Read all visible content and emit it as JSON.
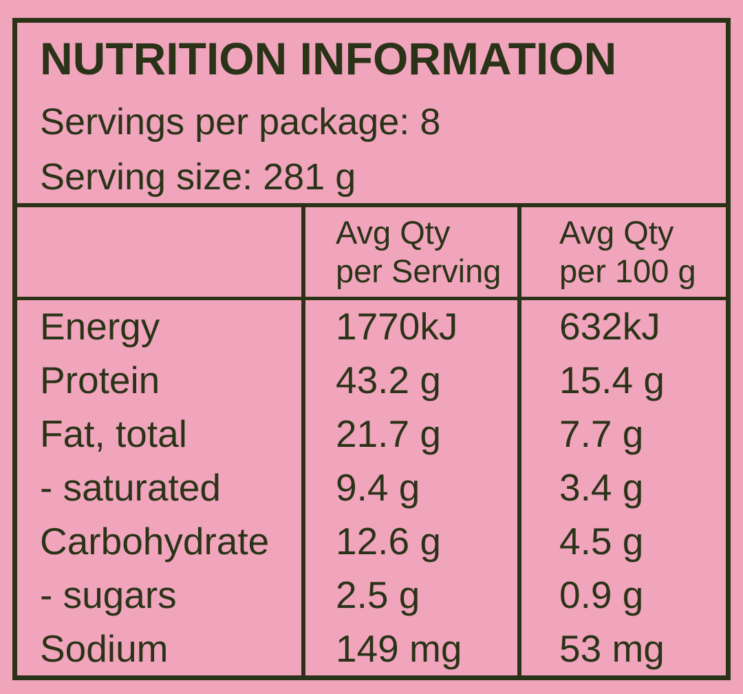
{
  "colors": {
    "background": "#f1a5bd",
    "ink": "#2a3317"
  },
  "panel": {
    "title": "NUTRITION INFORMATION",
    "servings_per_package": "Servings per package: 8",
    "serving_size": "Serving size: 281 g"
  },
  "table": {
    "headers": {
      "per_serving": {
        "line1": "Avg Qty",
        "line2": "per Serving"
      },
      "per_100g": {
        "line1": "Avg Qty",
        "line2": "per 100 g"
      }
    },
    "rows": [
      {
        "nutrient": "Energy",
        "per_serving": "1770kJ",
        "per_100g": "632kJ"
      },
      {
        "nutrient": "Protein",
        "per_serving": "43.2 g",
        "per_100g": "15.4 g"
      },
      {
        "nutrient": "Fat, total",
        "per_serving": "21.7 g",
        "per_100g": "7.7 g"
      },
      {
        "nutrient": "- saturated",
        "per_serving": "9.4 g",
        "per_100g": "3.4 g"
      },
      {
        "nutrient": "Carbohydrate",
        "per_serving": "12.6 g",
        "per_100g": "4.5 g"
      },
      {
        "nutrient": "- sugars",
        "per_serving": "2.5 g",
        "per_100g": "0.9 g"
      },
      {
        "nutrient": "Sodium",
        "per_serving": "149 mg",
        "per_100g": "53 mg"
      }
    ]
  }
}
